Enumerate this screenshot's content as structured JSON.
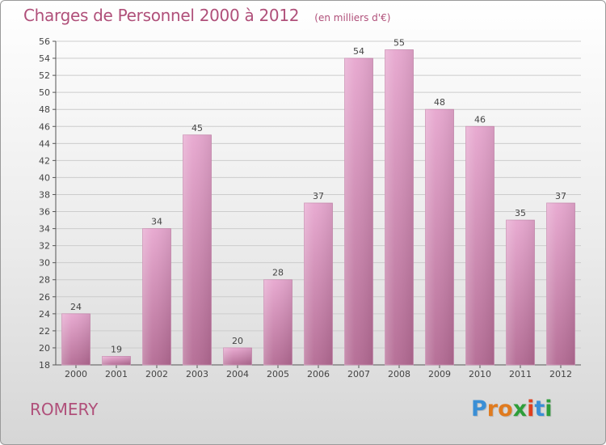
{
  "title": "Charges de Personnel 2000 à 2012",
  "subtitle": "(en milliers d'€)",
  "commune": "ROMERY",
  "logo": {
    "text": "Proxiti",
    "letters": [
      "P",
      "r",
      "o",
      "x",
      "i",
      "t",
      "i"
    ],
    "colors": [
      "#3a8fd6",
      "#e07b1f",
      "#e07b1f",
      "#2e9e3a",
      "#e0401f",
      "#3a8fd6",
      "#2e9e3a"
    ]
  },
  "colors": {
    "bar_top": "#e7a7cf",
    "bar_bottom": "#b36a93",
    "text_accent": "#b0507a",
    "grid": "#cccccc"
  },
  "chart_data": {
    "type": "bar",
    "categories": [
      "2000",
      "2001",
      "2002",
      "2003",
      "2004",
      "2005",
      "2006",
      "2007",
      "2008",
      "2009",
      "2010",
      "2011",
      "2012"
    ],
    "values": [
      24,
      19,
      34,
      45,
      20,
      28,
      37,
      54,
      55,
      48,
      46,
      35,
      37
    ],
    "ylim": [
      18,
      56
    ],
    "yticks": [
      18,
      20,
      22,
      24,
      26,
      28,
      30,
      32,
      34,
      36,
      38,
      40,
      42,
      44,
      46,
      48,
      50,
      52,
      54,
      56
    ],
    "grid": true,
    "xlabel": "",
    "ylabel": ""
  }
}
